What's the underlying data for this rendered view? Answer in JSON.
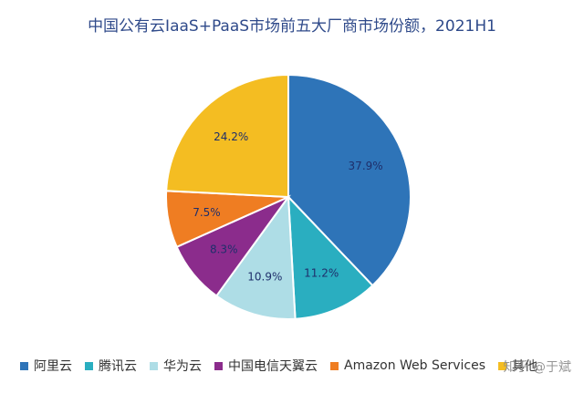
{
  "chart_data": {
    "type": "pie",
    "title": "中国公有云IaaS+PaaS市场前五大厂商市场份额，2021H1",
    "slices": [
      {
        "name": "阿里云",
        "value": 37.9,
        "label": "37.9%",
        "color": "#2e74b8"
      },
      {
        "name": "腾讯云",
        "value": 11.2,
        "label": "11.2%",
        "color": "#2aaec0"
      },
      {
        "name": "华为云",
        "value": 10.9,
        "label": "10.9%",
        "color": "#aedde6"
      },
      {
        "name": "中国电信天翼云",
        "value": 8.3,
        "label": "8.3%",
        "color": "#8b2c8c"
      },
      {
        "name": "Amazon Web Services",
        "value": 7.5,
        "label": "7.5%",
        "color": "#ef7d22"
      },
      {
        "name": "其他",
        "value": 24.2,
        "label": "24.2%",
        "color": "#f4bd22"
      }
    ],
    "legend_position": "bottom"
  },
  "watermark": "知乎 @于斌"
}
